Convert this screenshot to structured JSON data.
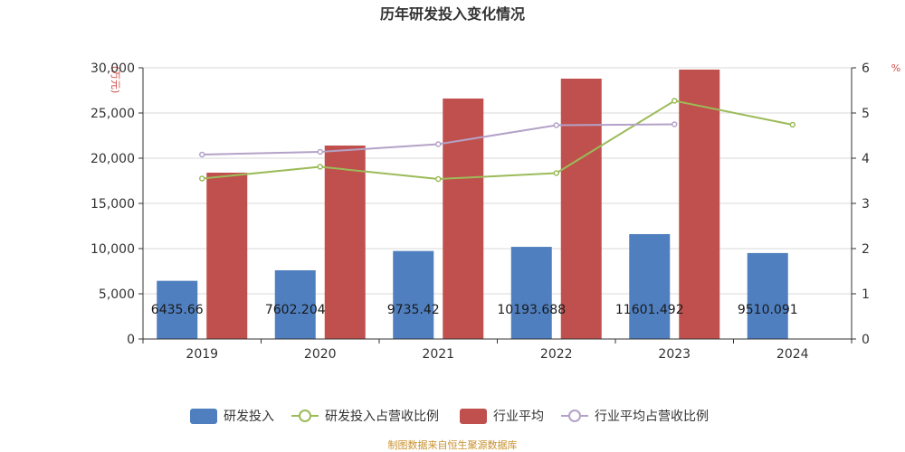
{
  "chart_data": {
    "type": "bar",
    "title": "历年研发投入变化情况",
    "categories": [
      "2019",
      "2020",
      "2021",
      "2022",
      "2023",
      "2024"
    ],
    "left_axis": {
      "unit": "(万元)",
      "ylim": [
        0,
        30000
      ],
      "ticks": [
        "0",
        "5,000",
        "10,000",
        "15,000",
        "20,000",
        "25,000",
        "30,000"
      ]
    },
    "right_axis": {
      "unit": "%",
      "ylim": [
        0,
        6
      ],
      "ticks": [
        "0",
        "1",
        "2",
        "3",
        "4",
        "5",
        "6"
      ]
    },
    "series": [
      {
        "name": "研发投入",
        "kind": "bar",
        "axis": "left",
        "color": "#4f7fbf",
        "values": [
          6435.66,
          7602.204,
          9735.42,
          10193.688,
          11601.492,
          9510.091
        ],
        "labels": [
          "6435.66",
          "7602.204",
          "9735.42",
          "10193.688",
          "11601.492",
          "9510.091"
        ]
      },
      {
        "name": "研发投入占营收比例",
        "kind": "line",
        "axis": "right",
        "color": "#9bbb59",
        "values": [
          3.55,
          3.81,
          3.54,
          3.67,
          5.27,
          4.74
        ]
      },
      {
        "name": "行业平均",
        "kind": "bar",
        "axis": "left",
        "color": "#c0504d",
        "values": [
          18400,
          21400,
          26600,
          28800,
          29800,
          null
        ]
      },
      {
        "name": "行业平均占营收比例",
        "kind": "line",
        "axis": "right",
        "color": "#b3a2c7",
        "values": [
          4.08,
          4.14,
          4.31,
          4.73,
          4.75,
          null
        ]
      }
    ],
    "grid": true,
    "legend_position": "bottom"
  },
  "footer": {
    "source": "制图数据来自恒生聚源数据库"
  }
}
